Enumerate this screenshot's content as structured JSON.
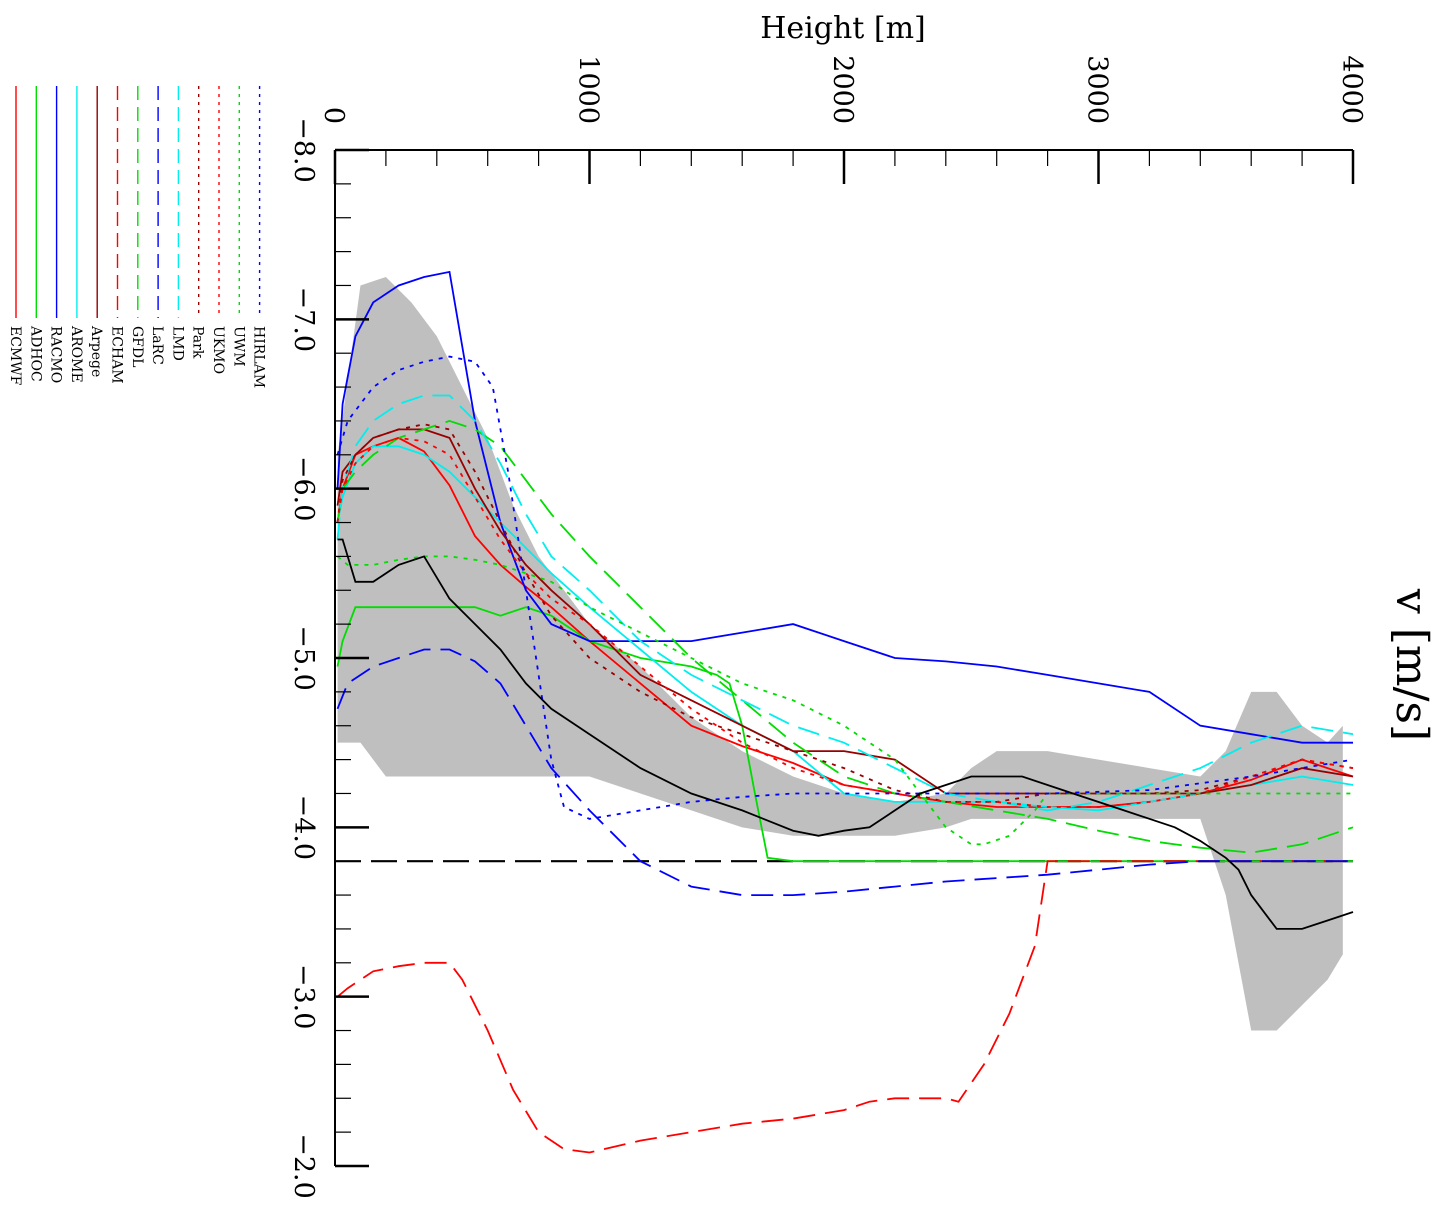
{
  "chart_data": {
    "type": "line",
    "orientation": "rotated-90-clockwise",
    "xlabel": "Height [m]",
    "ylabel": "v [m/s]",
    "xlim": [
      0,
      4000
    ],
    "ylim": [
      -8.0,
      -2.0
    ],
    "x_ticks": [
      "0",
      "1000",
      "2000",
      "3000",
      "4000"
    ],
    "y_ticks": [
      "−8.0",
      "−7.0",
      "−6.0",
      "−5.0",
      "−4.0",
      "−3.0",
      "−2.0"
    ],
    "reference_line": {
      "y": -3.8,
      "color": "#000000",
      "dash": "long"
    },
    "spread_band": {
      "color": "#bfbfbf",
      "x": [
        10,
        100,
        200,
        300,
        400,
        500,
        600,
        700,
        800,
        900,
        1000,
        1200,
        1400,
        1600,
        1800,
        2000,
        2200,
        2400,
        2500,
        2600,
        2800,
        3000,
        3200,
        3400,
        3500,
        3600,
        3700,
        3800,
        3900,
        3960
      ],
      "low": [
        -6.2,
        -7.2,
        -7.25,
        -7.1,
        -6.9,
        -6.6,
        -6.3,
        -5.9,
        -5.6,
        -5.4,
        -5.2,
        -4.95,
        -4.65,
        -4.45,
        -4.3,
        -4.2,
        -4.15,
        -4.2,
        -4.35,
        -4.45,
        -4.45,
        -4.4,
        -4.35,
        -4.3,
        -4.45,
        -4.8,
        -4.8,
        -4.6,
        -4.5,
        -4.6
      ],
      "high": [
        -4.5,
        -4.5,
        -4.3,
        -4.3,
        -4.3,
        -4.3,
        -4.3,
        -4.3,
        -4.3,
        -4.3,
        -4.3,
        -4.2,
        -4.1,
        -4.0,
        -3.95,
        -3.95,
        -3.95,
        -4.0,
        -4.05,
        -4.05,
        -4.05,
        -4.05,
        -4.05,
        -4.05,
        -3.6,
        -2.8,
        -2.8,
        -2.95,
        -3.1,
        -3.25
      ]
    },
    "series": [
      {
        "name": "ECMWF",
        "color": "#ff0000",
        "dash": "solid",
        "x": [
          10,
          30,
          80,
          150,
          250,
          350,
          450,
          550,
          650,
          750,
          850,
          1000,
          1200,
          1400,
          1600,
          1800,
          2000,
          2200,
          2400,
          2600,
          2800,
          3000,
          3200,
          3400,
          3600,
          3800,
          3900,
          4000
        ],
        "y": [
          -5.8,
          -6.0,
          -6.2,
          -6.25,
          -6.3,
          -6.22,
          -6.02,
          -5.72,
          -5.55,
          -5.42,
          -5.3,
          -5.1,
          -4.85,
          -4.6,
          -4.48,
          -4.38,
          -4.25,
          -4.2,
          -4.15,
          -4.12,
          -4.12,
          -4.12,
          -4.15,
          -4.2,
          -4.28,
          -4.4,
          -4.35,
          -4.3
        ]
      },
      {
        "name": "ADHOC",
        "color": "#00dd00",
        "dash": "solid",
        "x": [
          10,
          30,
          80,
          150,
          250,
          350,
          450,
          550,
          650,
          750,
          850,
          1000,
          1200,
          1400,
          1500,
          1550,
          1600,
          1650,
          1700,
          1800,
          2000,
          2500,
          3000,
          3500,
          4000
        ],
        "y": [
          -4.95,
          -5.1,
          -5.3,
          -5.3,
          -5.3,
          -5.3,
          -5.3,
          -5.3,
          -5.25,
          -5.3,
          -5.25,
          -5.1,
          -5.0,
          -4.95,
          -4.9,
          -4.85,
          -4.6,
          -4.2,
          -3.82,
          -3.8,
          -3.8,
          -3.8,
          -3.8,
          -3.8,
          -3.8
        ]
      },
      {
        "name": "RACMO",
        "color": "#0000ff",
        "dash": "solid",
        "x": [
          10,
          30,
          80,
          150,
          250,
          350,
          450,
          550,
          650,
          750,
          850,
          1000,
          1200,
          1400,
          1600,
          1800,
          2000,
          2200,
          2400,
          2600,
          2800,
          3000,
          3200,
          3400,
          3600,
          3800,
          4000
        ],
        "y": [
          -6.0,
          -6.5,
          -6.9,
          -7.1,
          -7.2,
          -7.25,
          -7.28,
          -6.4,
          -5.8,
          -5.4,
          -5.2,
          -5.1,
          -5.1,
          -5.1,
          -5.15,
          -5.2,
          -5.1,
          -5.0,
          -4.98,
          -4.95,
          -4.9,
          -4.85,
          -4.8,
          -4.6,
          -4.55,
          -4.5,
          -4.5
        ]
      },
      {
        "name": "AROME",
        "color": "#00eeee",
        "dash": "solid",
        "x": [
          10,
          30,
          80,
          150,
          250,
          350,
          450,
          550,
          650,
          750,
          850,
          1000,
          1200,
          1400,
          1600,
          1800,
          2000,
          2200,
          2400,
          2600,
          2800,
          3000,
          3200,
          3400,
          3600,
          3800,
          4000
        ],
        "y": [
          -5.8,
          -5.95,
          -6.15,
          -6.25,
          -6.25,
          -6.2,
          -6.1,
          -5.95,
          -5.8,
          -5.65,
          -5.5,
          -5.3,
          -5.05,
          -4.8,
          -4.6,
          -4.45,
          -4.2,
          -4.15,
          -4.15,
          -4.15,
          -4.12,
          -4.1,
          -4.15,
          -4.2,
          -4.25,
          -4.3,
          -4.25
        ]
      },
      {
        "name": "Arpege",
        "color": "#990000",
        "dash": "solid",
        "x": [
          10,
          30,
          80,
          150,
          250,
          350,
          450,
          550,
          650,
          750,
          850,
          1000,
          1200,
          1400,
          1600,
          1800,
          2000,
          2200,
          2400,
          2600,
          2800,
          3000,
          3200,
          3400,
          3600,
          3800,
          4000
        ],
        "y": [
          -5.9,
          -6.1,
          -6.2,
          -6.3,
          -6.35,
          -6.35,
          -6.3,
          -6.0,
          -5.75,
          -5.55,
          -5.4,
          -5.2,
          -4.9,
          -4.75,
          -4.6,
          -4.45,
          -4.45,
          -4.4,
          -4.2,
          -4.2,
          -4.2,
          -4.2,
          -4.2,
          -4.2,
          -4.25,
          -4.35,
          -4.3
        ]
      },
      {
        "name": "ECHAM",
        "color": "#ff0000",
        "dash": "dash",
        "x": [
          10,
          50,
          150,
          250,
          350,
          450,
          500,
          600,
          700,
          800,
          900,
          1000,
          1200,
          1400,
          1600,
          1800,
          2000,
          2100,
          2200,
          2300,
          2400,
          2450,
          2550,
          2650,
          2750,
          2800,
          3000,
          3400,
          4000
        ],
        "y": [
          -3.0,
          -3.05,
          -3.15,
          -3.18,
          -3.2,
          -3.2,
          -3.1,
          -2.8,
          -2.45,
          -2.2,
          -2.1,
          -2.08,
          -2.15,
          -2.2,
          -2.25,
          -2.28,
          -2.33,
          -2.38,
          -2.4,
          -2.4,
          -2.4,
          -2.38,
          -2.6,
          -2.9,
          -3.3,
          -3.8,
          -3.8,
          -3.8,
          -3.8
        ]
      },
      {
        "name": "GFDL",
        "color": "#00dd00",
        "dash": "dash",
        "x": [
          10,
          30,
          80,
          150,
          250,
          350,
          450,
          550,
          650,
          750,
          850,
          1000,
          1200,
          1400,
          1600,
          1800,
          2000,
          2200,
          2400,
          2600,
          2800,
          3000,
          3200,
          3400,
          3600,
          3800,
          4000
        ],
        "y": [
          -5.8,
          -6.0,
          -6.1,
          -6.2,
          -6.3,
          -6.35,
          -6.4,
          -6.35,
          -6.25,
          -6.05,
          -5.85,
          -5.6,
          -5.3,
          -5.0,
          -4.75,
          -4.5,
          -4.3,
          -4.2,
          -4.15,
          -4.1,
          -4.05,
          -3.98,
          -3.92,
          -3.88,
          -3.85,
          -3.9,
          -4.0
        ]
      },
      {
        "name": "LaRC",
        "color": "#0000ff",
        "dash": "dash",
        "x": [
          10,
          50,
          150,
          250,
          350,
          450,
          550,
          650,
          750,
          850,
          1000,
          1200,
          1400,
          1600,
          1800,
          2000,
          2200,
          2400,
          2600,
          2800,
          3000,
          3200,
          3400,
          3600,
          3800,
          4000
        ],
        "y": [
          -4.7,
          -4.85,
          -4.95,
          -5.0,
          -5.05,
          -5.05,
          -4.98,
          -4.85,
          -4.6,
          -4.35,
          -4.1,
          -3.8,
          -3.65,
          -3.6,
          -3.6,
          -3.62,
          -3.65,
          -3.68,
          -3.7,
          -3.72,
          -3.75,
          -3.78,
          -3.8,
          -3.8,
          -3.8,
          -3.8
        ]
      },
      {
        "name": "LMD",
        "color": "#00eeee",
        "dash": "dash",
        "x": [
          10,
          30,
          80,
          150,
          250,
          350,
          450,
          550,
          650,
          750,
          850,
          1000,
          1200,
          1400,
          1600,
          1800,
          2000,
          2200,
          2400,
          2600,
          2800,
          3000,
          3200,
          3400,
          3600,
          3800,
          4000
        ],
        "y": [
          -5.7,
          -6.0,
          -6.25,
          -6.4,
          -6.5,
          -6.55,
          -6.55,
          -6.4,
          -6.15,
          -5.85,
          -5.6,
          -5.4,
          -5.1,
          -4.9,
          -4.75,
          -4.6,
          -4.5,
          -4.35,
          -4.2,
          -4.15,
          -4.1,
          -4.15,
          -4.25,
          -4.35,
          -4.5,
          -4.6,
          -4.55
        ]
      },
      {
        "name": "Park",
        "color": "#990000",
        "dash": "dot",
        "x": [
          10,
          30,
          80,
          150,
          250,
          350,
          450,
          550,
          650,
          750,
          850,
          1000,
          1200,
          1400,
          1600,
          1800,
          2000,
          2200,
          2400,
          2600,
          2800,
          3000,
          3200,
          3400,
          3600,
          3800,
          4000
        ],
        "y": [
          -5.8,
          -6.05,
          -6.2,
          -6.3,
          -6.35,
          -6.38,
          -6.35,
          -6.1,
          -5.8,
          -5.5,
          -5.25,
          -5.0,
          -4.8,
          -4.65,
          -4.55,
          -4.45,
          -4.35,
          -4.22,
          -4.15,
          -4.15,
          -4.2,
          -4.2,
          -4.2,
          -4.22,
          -4.3,
          -4.4,
          -4.35
        ]
      },
      {
        "name": "UKMO",
        "color": "#ff0000",
        "dash": "dot",
        "x": [
          10,
          30,
          80,
          150,
          250,
          350,
          450,
          550,
          650,
          750,
          850,
          1000,
          1200,
          1400,
          1600,
          1800,
          2000,
          2200,
          2400,
          2600,
          2800,
          3000,
          3200,
          3400,
          3600,
          3800,
          4000
        ],
        "y": [
          -5.8,
          -6.0,
          -6.15,
          -6.25,
          -6.3,
          -6.28,
          -6.2,
          -5.95,
          -5.7,
          -5.5,
          -5.35,
          -5.2,
          -4.95,
          -4.7,
          -4.5,
          -4.35,
          -4.25,
          -4.2,
          -4.15,
          -4.15,
          -4.12,
          -4.12,
          -4.15,
          -4.2,
          -4.3,
          -4.4,
          -4.35
        ]
      },
      {
        "name": "UWM",
        "color": "#00dd00",
        "dash": "dot",
        "x": [
          10,
          50,
          150,
          250,
          350,
          450,
          550,
          650,
          750,
          850,
          1000,
          1200,
          1400,
          1600,
          1800,
          2000,
          2200,
          2300,
          2400,
          2500,
          2550,
          2650,
          2750,
          2800,
          3000,
          3500,
          4000
        ],
        "y": [
          -5.6,
          -5.55,
          -5.55,
          -5.58,
          -5.6,
          -5.6,
          -5.58,
          -5.55,
          -5.5,
          -5.45,
          -5.3,
          -5.15,
          -5.0,
          -4.85,
          -4.75,
          -4.6,
          -4.4,
          -4.2,
          -4.0,
          -3.9,
          -3.9,
          -3.95,
          -4.1,
          -4.2,
          -4.2,
          -4.2,
          -4.2
        ]
      },
      {
        "name": "HIRLAM",
        "color": "#0000ff",
        "dash": "dot",
        "x": [
          10,
          50,
          150,
          250,
          350,
          450,
          550,
          620,
          680,
          750,
          850,
          900,
          1000,
          1200,
          1400,
          1600,
          1800,
          2000,
          2400,
          2800,
          3200,
          3600,
          4000
        ],
        "y": [
          -6.2,
          -6.4,
          -6.6,
          -6.7,
          -6.75,
          -6.78,
          -6.75,
          -6.6,
          -6.1,
          -5.4,
          -4.4,
          -4.12,
          -4.05,
          -4.1,
          -4.15,
          -4.18,
          -4.2,
          -4.2,
          -4.2,
          -4.2,
          -4.22,
          -4.3,
          -4.4
        ]
      },
      {
        "name": "",
        "color": "#000000",
        "dash": "solid",
        "x": [
          10,
          30,
          80,
          150,
          250,
          350,
          450,
          550,
          650,
          750,
          850,
          1000,
          1200,
          1400,
          1600,
          1800,
          1900,
          2000,
          2100,
          2200,
          2300,
          2500,
          2700,
          2900,
          3100,
          3300,
          3400,
          3500,
          3550,
          3600,
          3700,
          3800,
          3900,
          4000
        ],
        "y": [
          -5.7,
          -5.7,
          -5.45,
          -5.45,
          -5.55,
          -5.6,
          -5.35,
          -5.2,
          -5.05,
          -4.85,
          -4.7,
          -4.55,
          -4.35,
          -4.2,
          -4.1,
          -3.98,
          -3.95,
          -3.98,
          -4.0,
          -4.1,
          -4.2,
          -4.3,
          -4.3,
          -4.2,
          -4.1,
          -4.0,
          -3.92,
          -3.82,
          -3.75,
          -3.6,
          -3.4,
          -3.4,
          -3.45,
          -3.5
        ]
      }
    ]
  }
}
